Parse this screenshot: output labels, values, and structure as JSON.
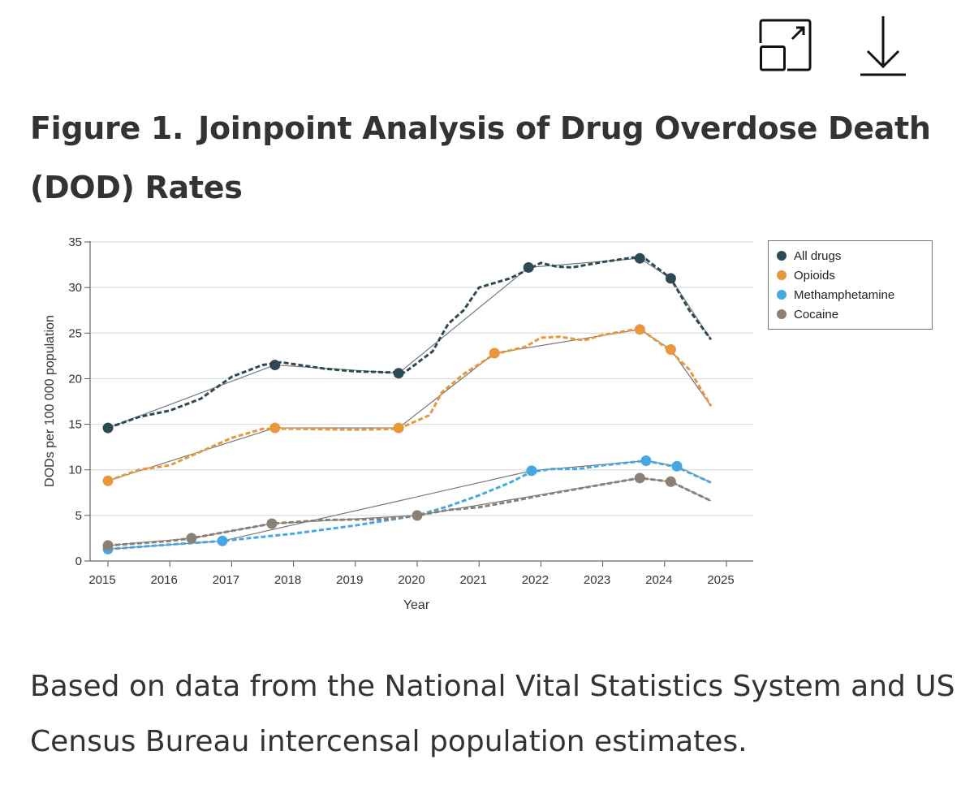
{
  "toolbar": {
    "expand_icon": "expand-icon",
    "download_icon": "download-icon"
  },
  "figure": {
    "label": "Figure 1.",
    "title": "Joinpoint Analysis of Drug Overdose Death (DOD) Rates",
    "caption": "Based on data from the National Vital Statistics System and US Census Bureau intercensal population estimates."
  },
  "chart_data": {
    "type": "line",
    "title": "",
    "xlabel": "Year",
    "ylabel": "DODs per 100 000 population",
    "xlim": [
      2015,
      2025
    ],
    "ylim": [
      0,
      35
    ],
    "xticks": [
      "2015",
      "2016",
      "2017",
      "2018",
      "2019",
      "2020",
      "2021",
      "2022",
      "2023",
      "2024",
      "2025"
    ],
    "yticks": [
      "0",
      "5",
      "10",
      "15",
      "20",
      "25",
      "30",
      "35"
    ],
    "grid": "horizontal",
    "legend_position": "top-right",
    "series": [
      {
        "name": "All drugs",
        "color": "#2c4955",
        "joinpoints": [
          [
            2015.0,
            14.6
          ],
          [
            2017.7,
            21.5
          ],
          [
            2019.7,
            20.6
          ],
          [
            2021.8,
            32.2
          ],
          [
            2023.6,
            33.2
          ],
          [
            2024.1,
            31.0
          ]
        ],
        "fitted_end": [
          2024.75,
          24.3
        ],
        "observed": [
          [
            2015,
            14.6
          ],
          [
            2015.5,
            15.8
          ],
          [
            2016,
            16.5
          ],
          [
            2016.5,
            17.8
          ],
          [
            2017,
            20.2
          ],
          [
            2017.5,
            21.5
          ],
          [
            2017.8,
            21.8
          ],
          [
            2018.5,
            21.1
          ],
          [
            2019,
            20.8
          ],
          [
            2019.5,
            20.7
          ],
          [
            2019.8,
            20.7
          ],
          [
            2020.25,
            23.0
          ],
          [
            2020.5,
            26.0
          ],
          [
            2020.75,
            27.5
          ],
          [
            2021,
            30.0
          ],
          [
            2021.5,
            31.0
          ],
          [
            2021.8,
            32.0
          ],
          [
            2022,
            32.7
          ],
          [
            2022.25,
            32.3
          ],
          [
            2022.5,
            32.2
          ],
          [
            2023,
            32.8
          ],
          [
            2023.5,
            33.3
          ],
          [
            2023.7,
            33.1
          ],
          [
            2024.1,
            31.0
          ],
          [
            2024.4,
            27.5
          ],
          [
            2024.75,
            24.3
          ]
        ]
      },
      {
        "name": "Opioids",
        "color": "#e8973a",
        "joinpoints": [
          [
            2015.0,
            8.8
          ],
          [
            2017.7,
            14.6
          ],
          [
            2019.7,
            14.6
          ],
          [
            2021.25,
            22.8
          ],
          [
            2023.6,
            25.4
          ],
          [
            2024.1,
            23.2
          ]
        ],
        "fitted_end": [
          2024.75,
          17.0
        ],
        "observed": [
          [
            2015,
            8.8
          ],
          [
            2015.5,
            10.0
          ],
          [
            2016,
            10.5
          ],
          [
            2016.5,
            12.0
          ],
          [
            2017,
            13.5
          ],
          [
            2017.5,
            14.5
          ],
          [
            2018,
            14.5
          ],
          [
            2019,
            14.4
          ],
          [
            2019.7,
            14.5
          ],
          [
            2020.2,
            16.0
          ],
          [
            2020.4,
            18.5
          ],
          [
            2020.75,
            20.5
          ],
          [
            2021.25,
            22.7
          ],
          [
            2021.75,
            23.5
          ],
          [
            2022,
            24.5
          ],
          [
            2022.3,
            24.6
          ],
          [
            2022.7,
            24.2
          ],
          [
            2023,
            24.8
          ],
          [
            2023.6,
            25.5
          ],
          [
            2024.1,
            23.0
          ],
          [
            2024.4,
            21.0
          ],
          [
            2024.75,
            17.0
          ]
        ]
      },
      {
        "name": "Methamphetamine",
        "color": "#45a8e0",
        "joinpoints": [
          [
            2015.0,
            1.3
          ],
          [
            2016.85,
            2.2
          ],
          [
            2021.85,
            9.9
          ],
          [
            2023.7,
            11.0
          ],
          [
            2024.2,
            10.4
          ]
        ],
        "fitted_end": [
          2024.75,
          8.6
        ],
        "observed": [
          [
            2015,
            1.3
          ],
          [
            2016,
            1.8
          ],
          [
            2016.85,
            2.2
          ],
          [
            2018,
            3.0
          ],
          [
            2019,
            3.9
          ],
          [
            2020,
            5.0
          ],
          [
            2020.5,
            6.0
          ],
          [
            2021,
            7.2
          ],
          [
            2021.5,
            8.6
          ],
          [
            2021.85,
            9.8
          ],
          [
            2022.2,
            10.1
          ],
          [
            2022.6,
            10.1
          ],
          [
            2023,
            10.5
          ],
          [
            2023.7,
            11.0
          ],
          [
            2024.2,
            10.3
          ],
          [
            2024.75,
            8.6
          ]
        ]
      },
      {
        "name": "Cocaine",
        "color": "#8a8075",
        "joinpoints": [
          [
            2015.0,
            1.7
          ],
          [
            2016.35,
            2.5
          ],
          [
            2017.65,
            4.1
          ],
          [
            2020.0,
            5.0
          ],
          [
            2023.6,
            9.1
          ],
          [
            2024.1,
            8.7
          ]
        ],
        "fitted_end": [
          2024.75,
          6.6
        ],
        "observed": [
          [
            2015,
            1.7
          ],
          [
            2016,
            2.2
          ],
          [
            2016.35,
            2.5
          ],
          [
            2017,
            3.3
          ],
          [
            2017.65,
            4.1
          ],
          [
            2018.5,
            4.5
          ],
          [
            2019.5,
            4.6
          ],
          [
            2020,
            5.0
          ],
          [
            2020.5,
            5.6
          ],
          [
            2021,
            5.9
          ],
          [
            2021.5,
            6.5
          ],
          [
            2022,
            7.2
          ],
          [
            2022.5,
            7.8
          ],
          [
            2023,
            8.4
          ],
          [
            2023.6,
            9.1
          ],
          [
            2024.1,
            8.7
          ],
          [
            2024.75,
            6.6
          ]
        ]
      }
    ]
  }
}
